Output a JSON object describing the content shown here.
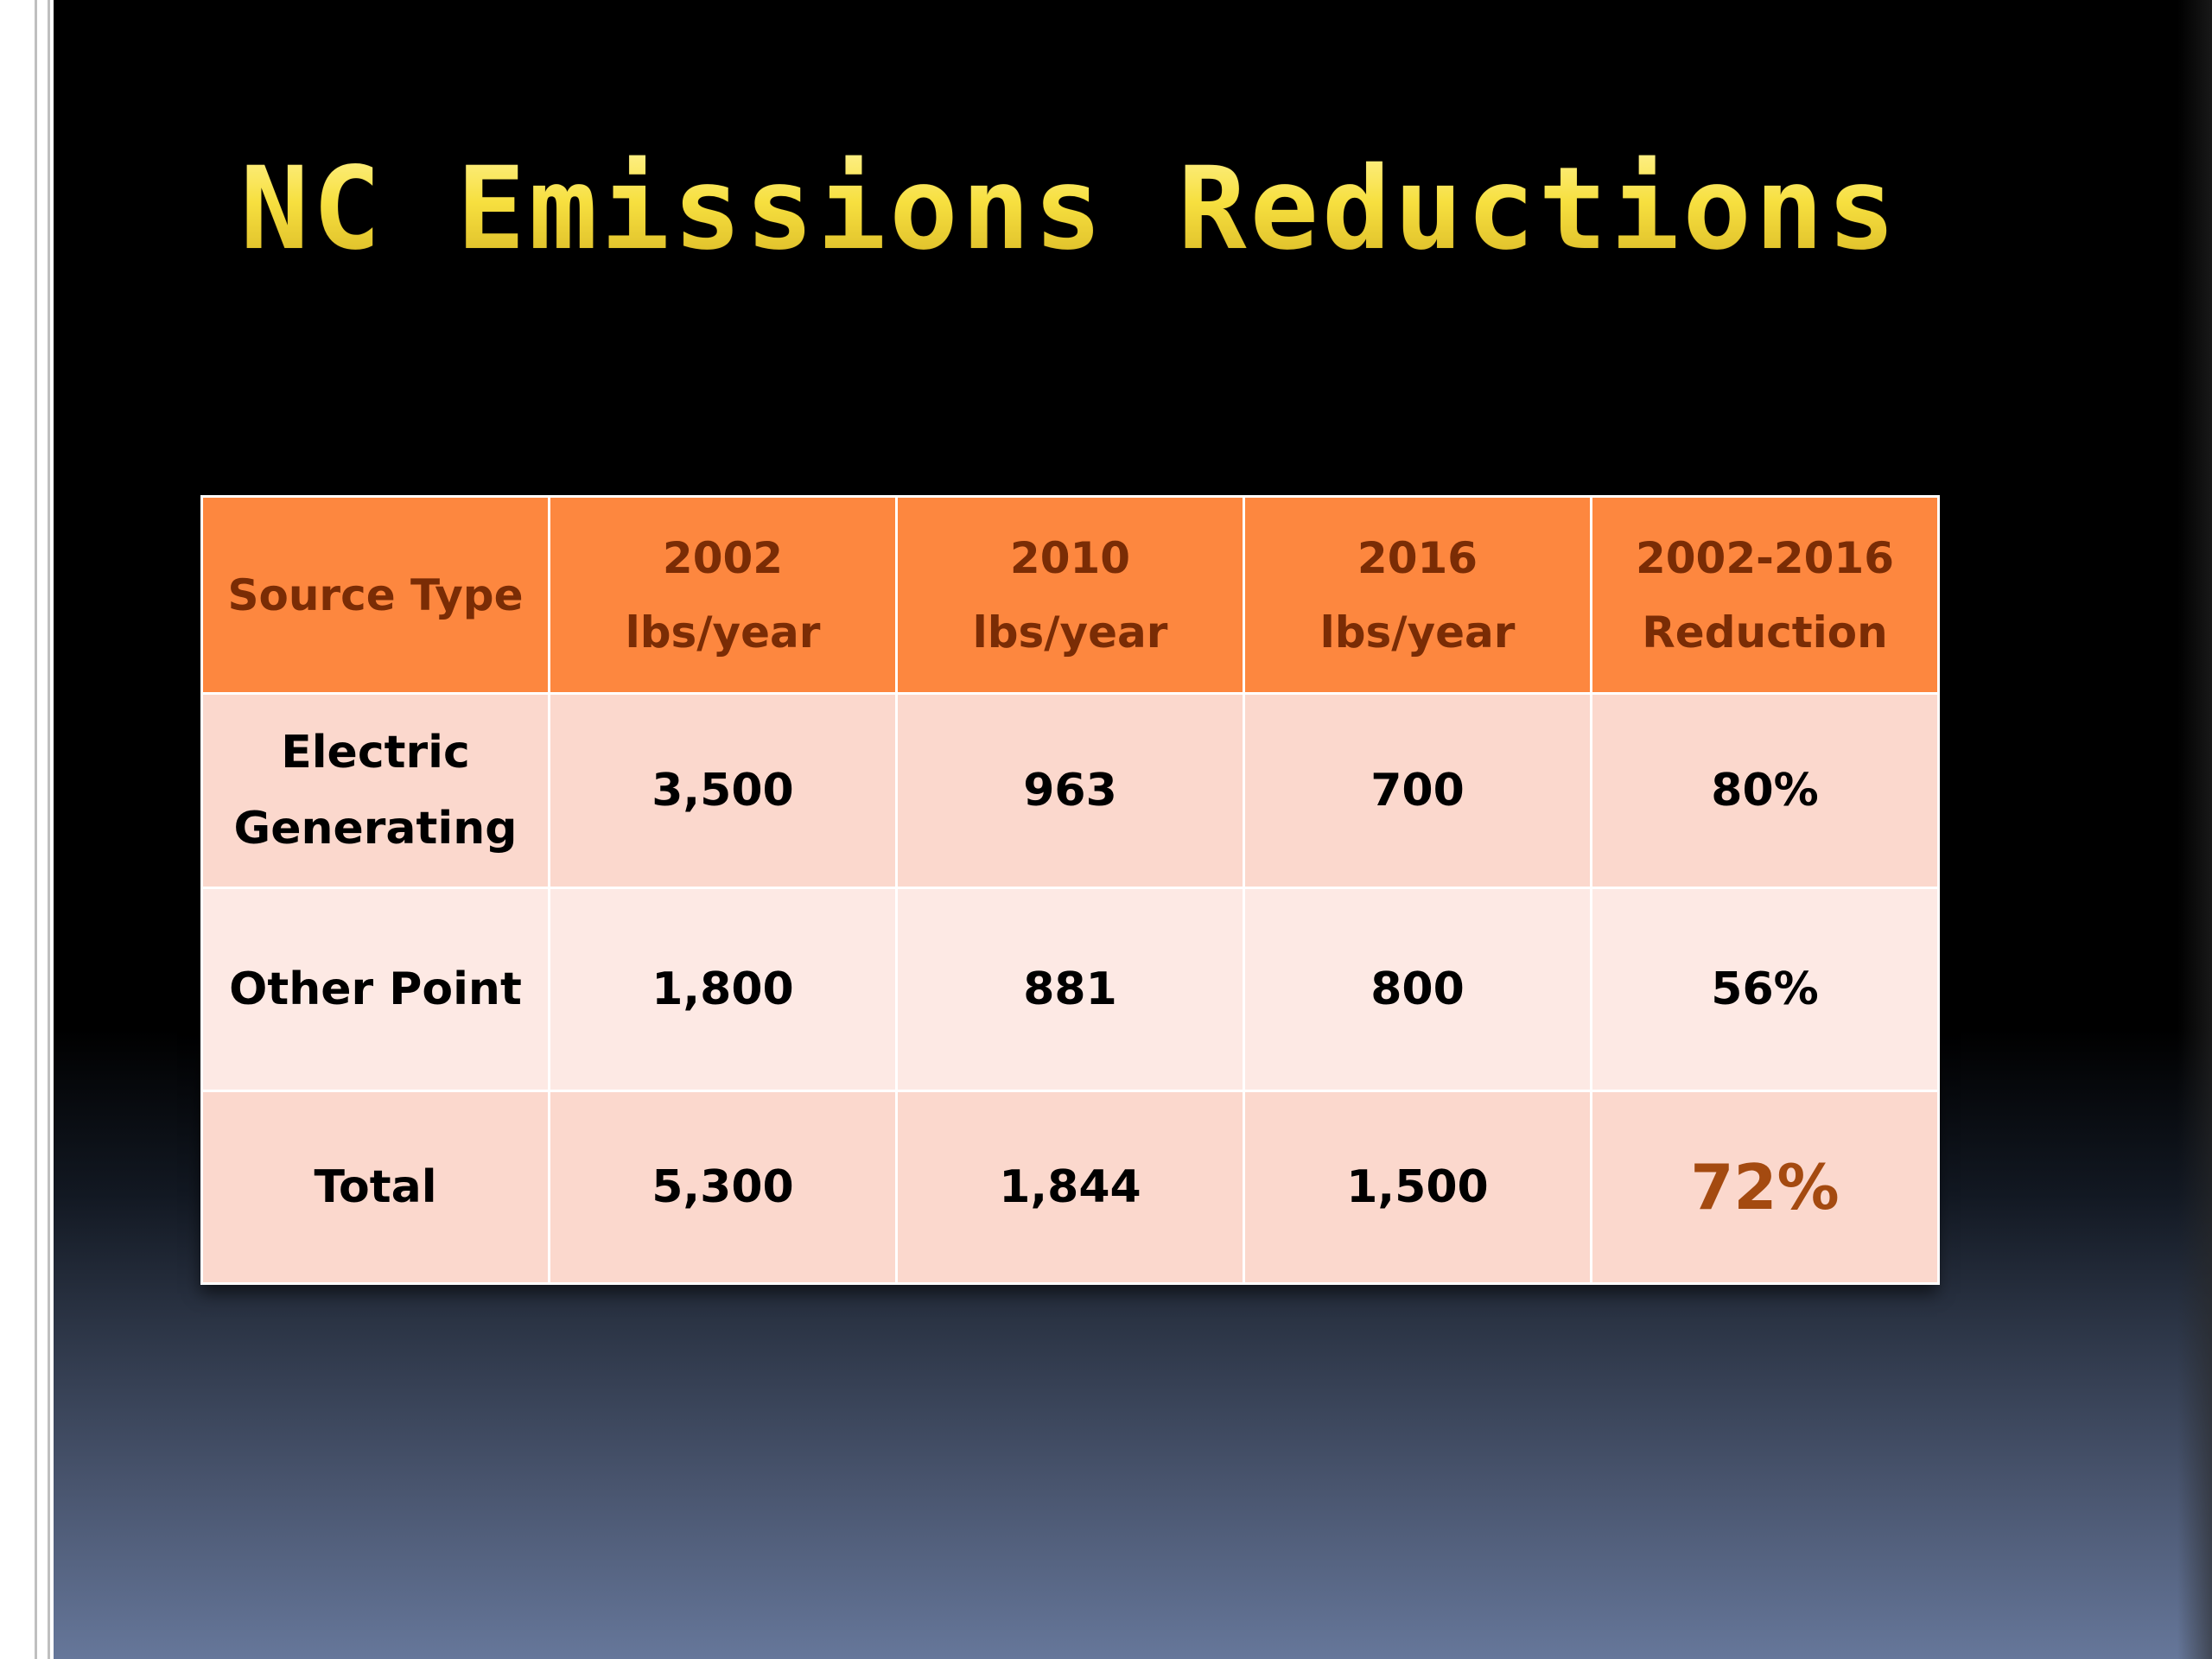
{
  "slide": {
    "title": "NC Emissions Reductions"
  },
  "table": {
    "headers": [
      {
        "line1": "Source Type",
        "line2": ""
      },
      {
        "line1": "2002",
        "line2": "lbs/year"
      },
      {
        "line1": "2010",
        "line2": "lbs/year"
      },
      {
        "line1": "2016",
        "line2": "lbs/year"
      },
      {
        "line1": "2002-2016",
        "line2": "Reduction"
      }
    ],
    "rows": [
      {
        "source_line1": "Electric",
        "source_line2": "Generating",
        "v2002": "3,500",
        "v2010": "963",
        "v2016": "700",
        "reduction": "80%"
      },
      {
        "source_line1": "Other Point",
        "source_line2": "",
        "v2002": "1,800",
        "v2010": "881",
        "v2016": "800",
        "reduction": "56%"
      },
      {
        "source_line1": "Total",
        "source_line2": "",
        "v2002": "5,300",
        "v2010": "1,844",
        "v2016": "1,500",
        "reduction": "72%"
      }
    ]
  },
  "colors": {
    "header_bg": "#fd873f",
    "header_text": "#7a2c05",
    "row_dark": "#fbd8cd",
    "row_light": "#fde9e4",
    "title": "#f4dd3a",
    "highlight": "#a44a10"
  }
}
